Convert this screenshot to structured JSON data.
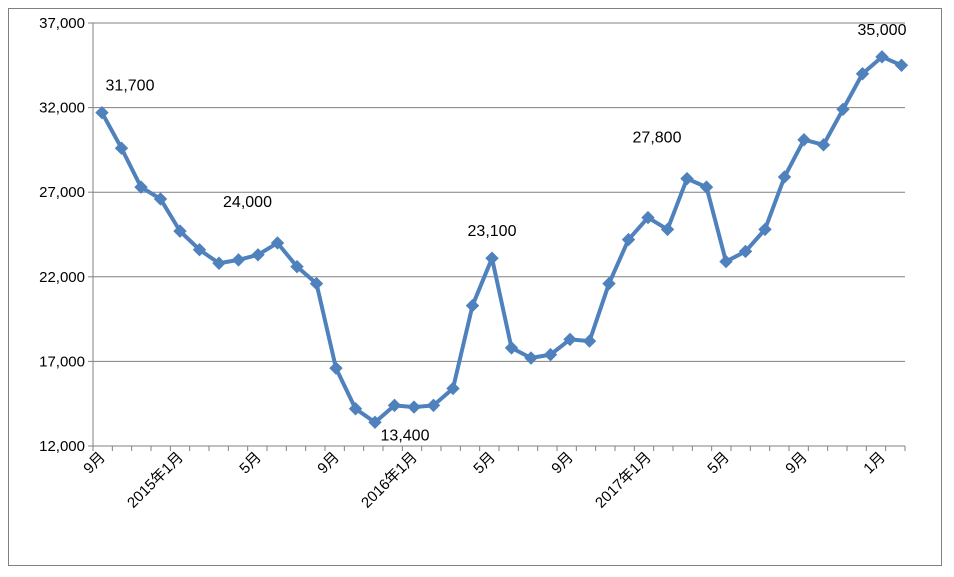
{
  "chart_data": {
    "type": "line",
    "title": "",
    "xlabel": "",
    "ylabel": "",
    "ylim": [
      12000,
      37000
    ],
    "y_ticks": [
      12000,
      17000,
      22000,
      27000,
      32000,
      37000
    ],
    "y_tick_labels": [
      "12,000",
      "17,000",
      "22,000",
      "27,000",
      "32,000",
      "37,000"
    ],
    "grid": "horizontal",
    "legend": "none",
    "series_color": "#4F81BD",
    "grid_color": "#808080",
    "x_labels": [
      {
        "index": 0,
        "text": "9月"
      },
      {
        "index": 4,
        "text": "2015年1月"
      },
      {
        "index": 8,
        "text": "5月"
      },
      {
        "index": 12,
        "text": "9月"
      },
      {
        "index": 16,
        "text": "2016年1月"
      },
      {
        "index": 20,
        "text": "5月"
      },
      {
        "index": 24,
        "text": "9月"
      },
      {
        "index": 28,
        "text": "2017年1月"
      },
      {
        "index": 32,
        "text": "5月"
      },
      {
        "index": 36,
        "text": "9月"
      },
      {
        "index": 40,
        "text": "1月"
      }
    ],
    "series": [
      {
        "values": [
          31700,
          29600,
          27300,
          26600,
          24700,
          23600,
          22800,
          23000,
          23300,
          24000,
          22600,
          21600,
          16600,
          14200,
          13400,
          14400,
          14300,
          14400,
          15400,
          20300,
          23100,
          17800,
          17200,
          17400,
          18300,
          18200,
          21600,
          24200,
          25500,
          24800,
          27800,
          27300,
          22900,
          23500,
          24800,
          27900,
          30100,
          29800,
          31900,
          34000,
          35000,
          34500
        ]
      }
    ],
    "annotations": [
      {
        "index": 0,
        "text": "31,700",
        "pos": "above-right"
      },
      {
        "index": 9,
        "text": "24,000",
        "pos": "above-left"
      },
      {
        "index": 14,
        "text": "13,400",
        "pos": "below-right"
      },
      {
        "index": 20,
        "text": "23,100",
        "pos": "above"
      },
      {
        "index": 30,
        "text": "27,800",
        "pos": "above-left"
      },
      {
        "index": 40,
        "text": "35,000",
        "pos": "above"
      }
    ]
  }
}
